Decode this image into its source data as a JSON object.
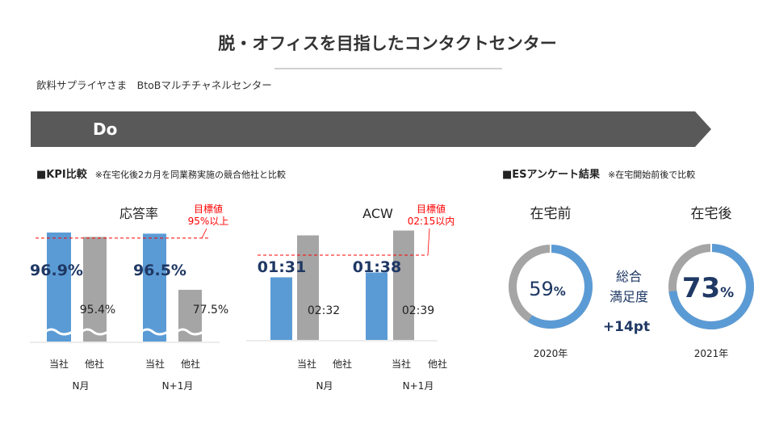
{
  "header": {
    "title": "脱・オフィスを目指したコンタクトセンター",
    "subtitle": "飲料サプライヤさま　BtoBマルチチャネルセンター",
    "phase": "Do"
  },
  "kpi_section": {
    "heading": "■KPI比較",
    "note": "※在宅化後2カ月を同業務実施の競合他社と比較"
  },
  "es_section": {
    "heading": "■ESアンケート結果",
    "note": "※在宅開始前後で比較"
  },
  "colors": {
    "ours": "#5b9bd5",
    "others": "#a5a5a5",
    "target": "#ff0000",
    "value_dark": "#1f3864",
    "banner": "#595959"
  },
  "chart_data": [
    {
      "type": "bar",
      "title": "応答率",
      "target_label": [
        "目標値",
        "95%以上"
      ],
      "target": 95,
      "ylim": [
        60,
        100
      ],
      "axis_break": true,
      "groups": [
        "N月",
        "N+1月"
      ],
      "categories": [
        "当社",
        "他社"
      ],
      "series": [
        {
          "group": "N月",
          "values": [
            96.9,
            95.4
          ],
          "labels": [
            "96.9%",
            "95.4%"
          ]
        },
        {
          "group": "N+1月",
          "values": [
            96.5,
            77.5
          ],
          "labels": [
            "96.5%",
            "77.5%"
          ]
        }
      ]
    },
    {
      "type": "bar",
      "title": "ACW",
      "target_label": [
        "目標値",
        "02:15以内"
      ],
      "target": 135,
      "unit": "seconds",
      "ylim": [
        0,
        180
      ],
      "groups": [
        "N月",
        "N+1月"
      ],
      "categories": [
        "当社",
        "他社"
      ],
      "series": [
        {
          "group": "N月",
          "values": [
            91,
            152
          ],
          "labels": [
            "01:31",
            "02:32"
          ]
        },
        {
          "group": "N+1月",
          "values": [
            98,
            159
          ],
          "labels": [
            "01:38",
            "02:39"
          ]
        }
      ]
    },
    {
      "type": "pie",
      "donuts": [
        {
          "title": "在宅前",
          "value": 59,
          "num": "59",
          "pct": "%",
          "year": "2020年"
        },
        {
          "title": "在宅後",
          "value": 73,
          "num": "73",
          "pct": "%",
          "year": "2021年"
        }
      ],
      "center_label": [
        "総合",
        "満足度"
      ],
      "delta": "+14pt"
    }
  ]
}
